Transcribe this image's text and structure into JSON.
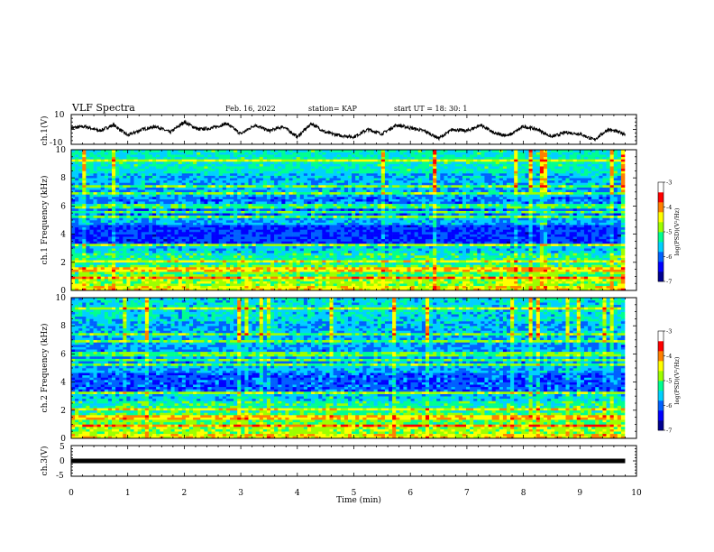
{
  "header": {
    "title": "VLF Spectra",
    "date": "Feb. 16, 2022",
    "station": "station= KAP",
    "start": "start UT =  18: 30: 1"
  },
  "colors": {
    "colormap": [
      "#000090",
      "#0000ff",
      "#0060ff",
      "#00d0ff",
      "#00ff90",
      "#9cff00",
      "#ffff00",
      "#ff8000",
      "#ff0000",
      "#ffffff"
    ],
    "trace": "#000000",
    "axis": "#000000"
  },
  "chart_data": [
    {
      "type": "line",
      "panel": "ch1-waveform",
      "ylabel": "ch.1(V)",
      "ylim": [
        -10,
        10
      ],
      "yticks": [
        "10",
        "-10"
      ],
      "xlim": [
        0,
        10
      ],
      "x": [
        0,
        0.25,
        0.5,
        0.75,
        1.0,
        1.25,
        1.5,
        1.75,
        2.0,
        2.25,
        2.5,
        2.75,
        3.0,
        3.25,
        3.5,
        3.75,
        4.0,
        4.25,
        4.5,
        4.75,
        5.0,
        5.25,
        5.5,
        5.75,
        6.0,
        6.25,
        6.5,
        6.75,
        7.0,
        7.25,
        7.5,
        7.75,
        8.0,
        8.25,
        8.5,
        8.75,
        9.0,
        9.25,
        9.5,
        9.8
      ],
      "y": [
        1,
        2,
        -1,
        3,
        -4,
        0,
        2,
        -2,
        5,
        0,
        1,
        4,
        -3,
        3,
        -1,
        2,
        -5,
        4,
        -2,
        -4,
        -5,
        0,
        -3,
        3,
        1,
        -1,
        -6,
        0,
        -1,
        3,
        -3,
        -4,
        2,
        0,
        -5,
        -2,
        -3,
        -7,
        0,
        -3
      ]
    },
    {
      "type": "heatmap",
      "panel": "ch1-spectrogram",
      "ylabel": "ch.1 Frequency (kHz)",
      "yticks": [
        "0",
        "2",
        "4",
        "6",
        "8",
        "10"
      ],
      "ylim": [
        0,
        10
      ],
      "xlim": [
        0,
        10
      ],
      "colorbar": {
        "label": "log(PSD)(V²/Hz)",
        "ticks": [
          "-3",
          "-4",
          "-5",
          "-6",
          "-7"
        ],
        "range": [
          -7,
          -3
        ]
      }
    },
    {
      "type": "heatmap",
      "panel": "ch2-spectrogram",
      "ylabel": "ch.2 Frequency (kHz)",
      "yticks": [
        "0",
        "2",
        "4",
        "6",
        "8",
        "10"
      ],
      "ylim": [
        0,
        10
      ],
      "xlim": [
        0,
        10
      ],
      "colorbar": {
        "label": "log(PSD)(V²/Hz)",
        "ticks": [
          "-3",
          "-4",
          "-5",
          "-6",
          "-7"
        ],
        "range": [
          -7,
          -3
        ]
      }
    },
    {
      "type": "line",
      "panel": "ch3-waveform",
      "ylabel": "ch.3(V)",
      "ylim": [
        -5,
        5
      ],
      "yticks": [
        "5",
        "0",
        "-5"
      ],
      "xlim": [
        0,
        10
      ],
      "xlabel": "Time (min)",
      "xticks": [
        "0",
        "1",
        "2",
        "3",
        "4",
        "5",
        "6",
        "7",
        "8",
        "9",
        "10"
      ],
      "x": [
        0,
        9.8
      ],
      "y": [
        0,
        0
      ]
    }
  ]
}
